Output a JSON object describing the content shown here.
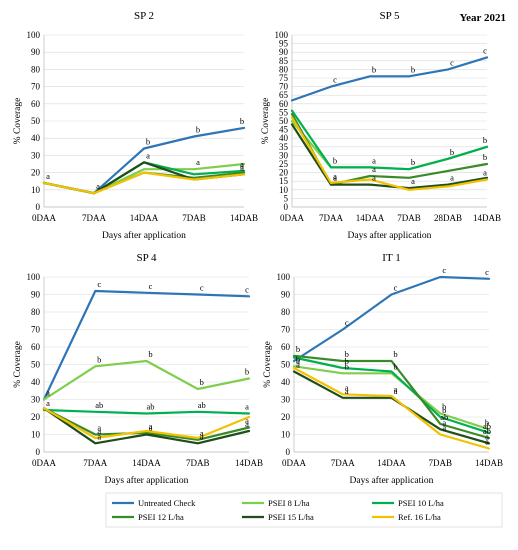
{
  "year_label": "Year 2021",
  "colors": {
    "untreated": "#2e75b6",
    "psei8": "#7fce4b",
    "psei10": "#00b050",
    "psei12": "#3a8a2a",
    "psei15": "#1f4e1a",
    "ref16": "#f2c200",
    "letter": "#000000",
    "grid": "#d9d9d9",
    "axis": "#bfbfbf"
  },
  "legend": [
    {
      "label": "Untreated Check",
      "color_key": "untreated"
    },
    {
      "label": "PSEI 8 L/ha",
      "color_key": "psei8"
    },
    {
      "label": "PSEI 10 L/ha",
      "color_key": "psei10"
    },
    {
      "label": "PSEI 12 L/ha",
      "color_key": "psei12"
    },
    {
      "label": "PSEI 15 L/ha",
      "color_key": "psei15"
    },
    {
      "label": "Ref. 16 L/ha",
      "color_key": "ref16"
    }
  ],
  "chart_data": [
    {
      "type": "line",
      "title": "SP 2",
      "xlabel": "Days after application",
      "ylabel": "% Coverage",
      "ylim": [
        0,
        100
      ],
      "yticks": [
        0,
        10,
        20,
        30,
        40,
        50,
        60,
        70,
        80,
        90,
        100
      ],
      "categories": [
        "0DAA",
        "7DAA",
        "14DAA",
        "7DAB",
        "14DAB"
      ],
      "grid": true,
      "series": [
        {
          "name": "Untreated Check",
          "color_key": "untreated",
          "values": [
            14,
            8,
            34,
            41,
            46
          ],
          "labels": [
            "a",
            "a",
            "b",
            "b",
            "b"
          ]
        },
        {
          "name": "PSEI 8 L/ha",
          "color_key": "psei8",
          "values": [
            14,
            8,
            22,
            22,
            25
          ],
          "labels": [
            "",
            "",
            "",
            "a",
            ""
          ]
        },
        {
          "name": "PSEI 10 L/ha",
          "color_key": "psei10",
          "values": [
            14,
            8,
            26,
            19,
            21
          ],
          "labels": [
            "",
            "",
            "a",
            "",
            "a"
          ]
        },
        {
          "name": "PSEI 12 L/ha",
          "color_key": "psei12",
          "values": [
            14,
            8,
            20,
            17,
            20
          ],
          "labels": [
            "",
            "",
            "",
            "",
            "a"
          ]
        },
        {
          "name": "PSEI 15 L/ha",
          "color_key": "psei15",
          "values": [
            14,
            8,
            26,
            16,
            19
          ],
          "labels": [
            "",
            "",
            "",
            "",
            ""
          ]
        },
        {
          "name": "Ref. 16 L/ha",
          "color_key": "ref16",
          "values": [
            14,
            8,
            20,
            16,
            19
          ],
          "labels": [
            "",
            "",
            "",
            "",
            "a"
          ]
        }
      ]
    },
    {
      "type": "line",
      "title": "SP 5",
      "xlabel": "Days after application",
      "ylabel": "% Coverage",
      "ylim": [
        0,
        100
      ],
      "yticks": [
        0,
        5,
        10,
        15,
        20,
        25,
        30,
        35,
        40,
        45,
        50,
        55,
        60,
        65,
        70,
        75,
        80,
        85,
        90,
        95,
        100
      ],
      "categories": [
        "0DAA",
        "7DAA",
        "14DAA",
        "7DAB",
        "28DAB",
        "14DAB"
      ],
      "grid": true,
      "series": [
        {
          "name": "Untreated Check",
          "color_key": "untreated",
          "values": [
            62,
            70,
            76,
            76,
            80,
            87
          ],
          "labels": [
            "",
            "c",
            "b",
            "b",
            "c",
            "c"
          ]
        },
        {
          "name": "PSEI 8 L/ha",
          "color_key": "psei8",
          "values": [
            50,
            23,
            23,
            22,
            28,
            35
          ],
          "labels": [
            "",
            "b",
            "a",
            "b",
            "",
            "b"
          ]
        },
        {
          "name": "PSEI 10 L/ha",
          "color_key": "psei10",
          "values": [
            56,
            23,
            23,
            22,
            28,
            35
          ],
          "labels": [
            "",
            "",
            "",
            "",
            "b",
            ""
          ]
        },
        {
          "name": "PSEI 12 L/ha",
          "color_key": "psei12",
          "values": [
            54,
            13,
            18,
            17,
            21,
            25
          ],
          "labels": [
            "",
            "a",
            "a",
            "",
            "",
            "b"
          ]
        },
        {
          "name": "PSEI 15 L/ha",
          "color_key": "psei15",
          "values": [
            48,
            13,
            13,
            11,
            13,
            17
          ],
          "labels": [
            "",
            "a",
            "a",
            "a",
            "a",
            ""
          ]
        },
        {
          "name": "Ref. 16 L/ha",
          "color_key": "ref16",
          "values": [
            52,
            14,
            16,
            10,
            12,
            16
          ],
          "labels": [
            "",
            "a",
            "",
            "",
            "",
            "a"
          ]
        }
      ]
    },
    {
      "type": "line",
      "title": "SP 4",
      "xlabel": "Days after application",
      "ylabel": "% Coverage",
      "ylim": [
        0,
        100
      ],
      "yticks": [
        0,
        10,
        20,
        30,
        40,
        50,
        60,
        70,
        80,
        90,
        100
      ],
      "categories": [
        "0DAA",
        "7DAA",
        "14DAA",
        "7DAB",
        "14DAB"
      ],
      "grid": true,
      "series": [
        {
          "name": "Untreated Check",
          "color_key": "untreated",
          "values": [
            30,
            92,
            91,
            90,
            89
          ],
          "labels": [
            "a",
            "c",
            "c",
            "c",
            "c"
          ]
        },
        {
          "name": "PSEI 8 L/ha",
          "color_key": "psei8",
          "values": [
            30,
            49,
            52,
            36,
            42
          ],
          "labels": [
            "",
            "b",
            "b",
            "b",
            "b"
          ]
        },
        {
          "name": "PSEI 10 L/ha",
          "color_key": "psei10",
          "values": [
            24,
            23,
            22,
            23,
            22
          ],
          "labels": [
            "a",
            "ab",
            "ab",
            "ab",
            "a"
          ]
        },
        {
          "name": "PSEI 12 L/ha",
          "color_key": "psei12",
          "values": [
            25,
            10,
            11,
            7,
            14
          ],
          "labels": [
            "",
            "a",
            "a",
            "a",
            "a"
          ]
        },
        {
          "name": "PSEI 15 L/ha",
          "color_key": "psei15",
          "values": [
            25,
            5,
            10,
            5,
            12
          ],
          "labels": [
            "",
            "a",
            "a",
            "a",
            "a"
          ]
        },
        {
          "name": "Ref. 16 L/ha",
          "color_key": "ref16",
          "values": [
            25,
            8,
            12,
            8,
            20
          ],
          "labels": [
            "",
            "a",
            "",
            "",
            ""
          ]
        }
      ]
    },
    {
      "type": "line",
      "title": "IT 1",
      "xlabel": "Days after application",
      "ylabel": "% Coverage",
      "ylim": [
        0,
        100
      ],
      "yticks": [
        0,
        10,
        20,
        30,
        40,
        50,
        60,
        70,
        80,
        90,
        100
      ],
      "categories": [
        "0DAA",
        "7DAA",
        "14DAA",
        "7DAB",
        "14DAB"
      ],
      "grid": true,
      "series": [
        {
          "name": "Untreated Check",
          "color_key": "untreated",
          "values": [
            52,
            70,
            90,
            100,
            99
          ],
          "labels": [
            "",
            "c",
            "c",
            "c",
            "c"
          ]
        },
        {
          "name": "PSEI 8 L/ha",
          "color_key": "psei8",
          "values": [
            49,
            45,
            45,
            22,
            13
          ],
          "labels": [
            "b",
            "b",
            "b",
            "b",
            "b"
          ]
        },
        {
          "name": "PSEI 10 L/ha",
          "color_key": "psei10",
          "values": [
            54,
            48,
            46,
            20,
            11
          ],
          "labels": [
            "",
            "b",
            "",
            "b",
            "ab"
          ]
        },
        {
          "name": "PSEI 12 L/ha",
          "color_key": "psei12",
          "values": [
            55,
            52,
            52,
            16,
            8
          ],
          "labels": [
            "b",
            "b",
            "b",
            "ab",
            "ab"
          ]
        },
        {
          "name": "PSEI 15 L/ha",
          "color_key": "psei15",
          "values": [
            46,
            31,
            31,
            13,
            5
          ],
          "labels": [
            "a",
            "a",
            "a",
            "a",
            "a"
          ]
        },
        {
          "name": "Ref. 16 L/ha",
          "color_key": "ref16",
          "values": [
            48,
            33,
            32,
            10,
            2
          ],
          "labels": [
            "a",
            "a",
            "a",
            "a",
            "a"
          ]
        }
      ]
    }
  ]
}
